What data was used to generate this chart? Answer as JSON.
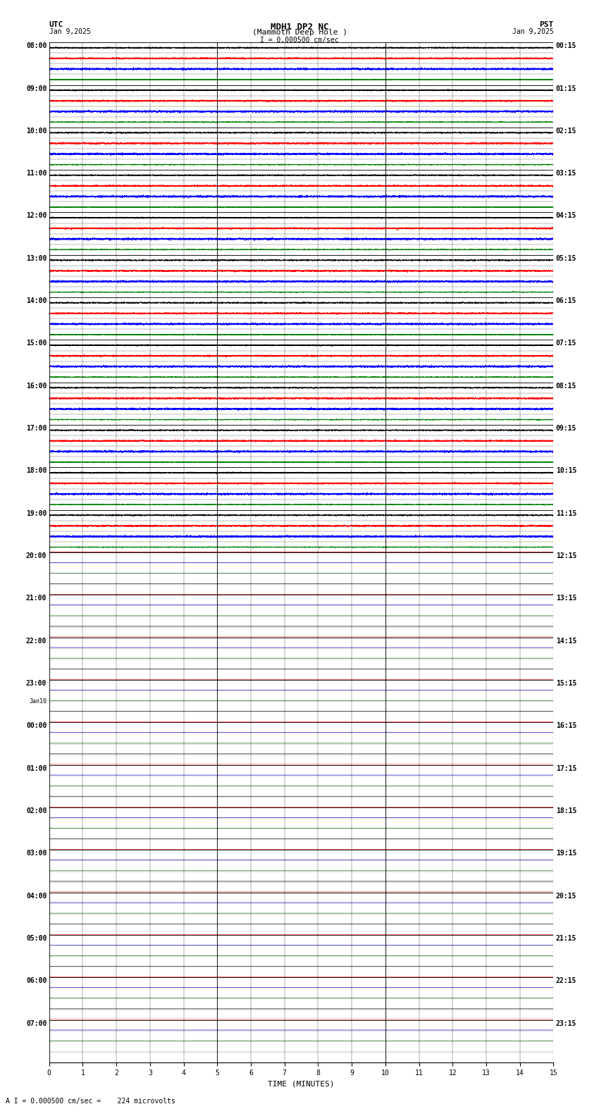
{
  "title_line1": "MDH1 DP2 NC",
  "title_line2": "(Mammoth Deep Hole )",
  "scale_label": "I = 0.000500 cm/sec",
  "utc_label": "UTC",
  "pst_label": "PST",
  "date_left": "Jan 9,2025",
  "date_right": "Jan 9,2025",
  "bottom_label": "A I = 0.000500 cm/sec =    224 microvolts",
  "xlabel": "TIME (MINUTES)",
  "bg_color": "#ffffff",
  "trace_colors": [
    "#000000",
    "#ff0000",
    "#0000ff",
    "#008000"
  ],
  "num_time_blocks": 24,
  "traces_per_block": 4,
  "left_labels_utc": [
    "08:00",
    "09:00",
    "10:00",
    "11:00",
    "12:00",
    "13:00",
    "14:00",
    "15:00",
    "16:00",
    "17:00",
    "18:00",
    "19:00",
    "20:00",
    "21:00",
    "22:00",
    "23:00",
    "Jan10|00:00",
    "01:00",
    "02:00",
    "03:00",
    "04:00",
    "05:00",
    "06:00",
    "07:00"
  ],
  "right_labels_pst": [
    "00:15",
    "01:15",
    "02:15",
    "03:15",
    "04:15",
    "05:15",
    "06:15",
    "07:15",
    "08:15",
    "09:15",
    "10:15",
    "11:15",
    "12:15",
    "13:15",
    "14:15",
    "15:15",
    "16:15",
    "17:15",
    "18:15",
    "19:15",
    "20:15",
    "21:15",
    "22:15",
    "23:15"
  ],
  "noise_scale": 0.06,
  "sample_rate": 20,
  "minutes_per_row": 15
}
